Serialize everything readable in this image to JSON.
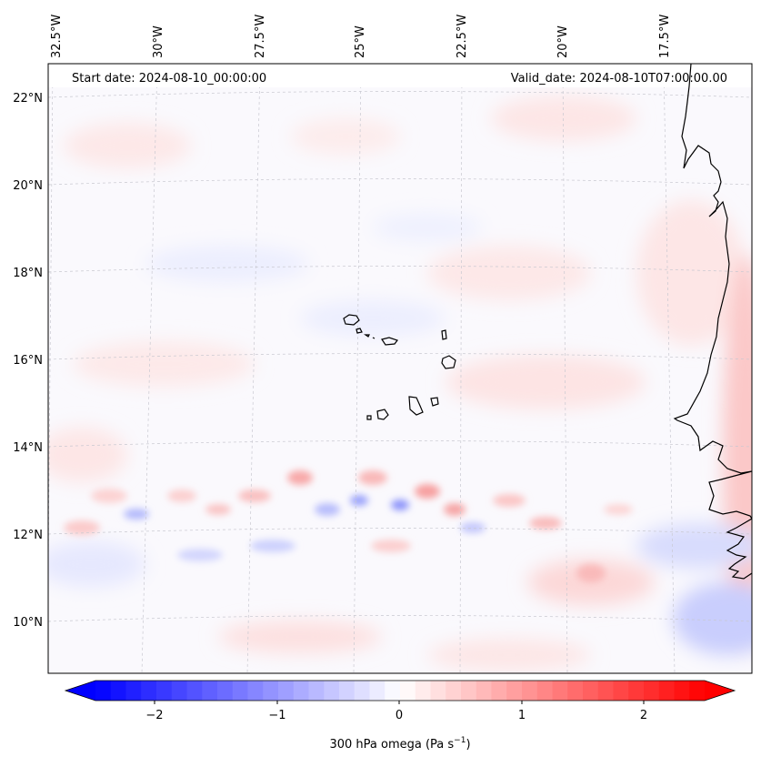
{
  "header": {
    "start_date": "Start date: 2024-08-10_00:00:00",
    "valid_date": "Valid_date: 2024-08-10T07:00:00.00"
  },
  "map": {
    "lon_labels": [
      "32.5°W",
      "30°W",
      "27.5°W",
      "25°W",
      "22.5°W",
      "20°W",
      "17.5°W"
    ],
    "lat_labels": [
      "22°N",
      "20°N",
      "18°N",
      "16°N",
      "14°N",
      "12°N",
      "10°N"
    ],
    "features": [
      "Cabo Verde islands",
      "West African coastline"
    ]
  },
  "colorbar": {
    "ticks": [
      "−2",
      "−1",
      "0",
      "1",
      "2"
    ],
    "label": "300 hPa omega (Pa s",
    "label_exp": "−1",
    "label_end": ")",
    "colors": {
      "min": "#0000ff",
      "mid": "#ffffff",
      "max": "#ff0000"
    }
  }
}
